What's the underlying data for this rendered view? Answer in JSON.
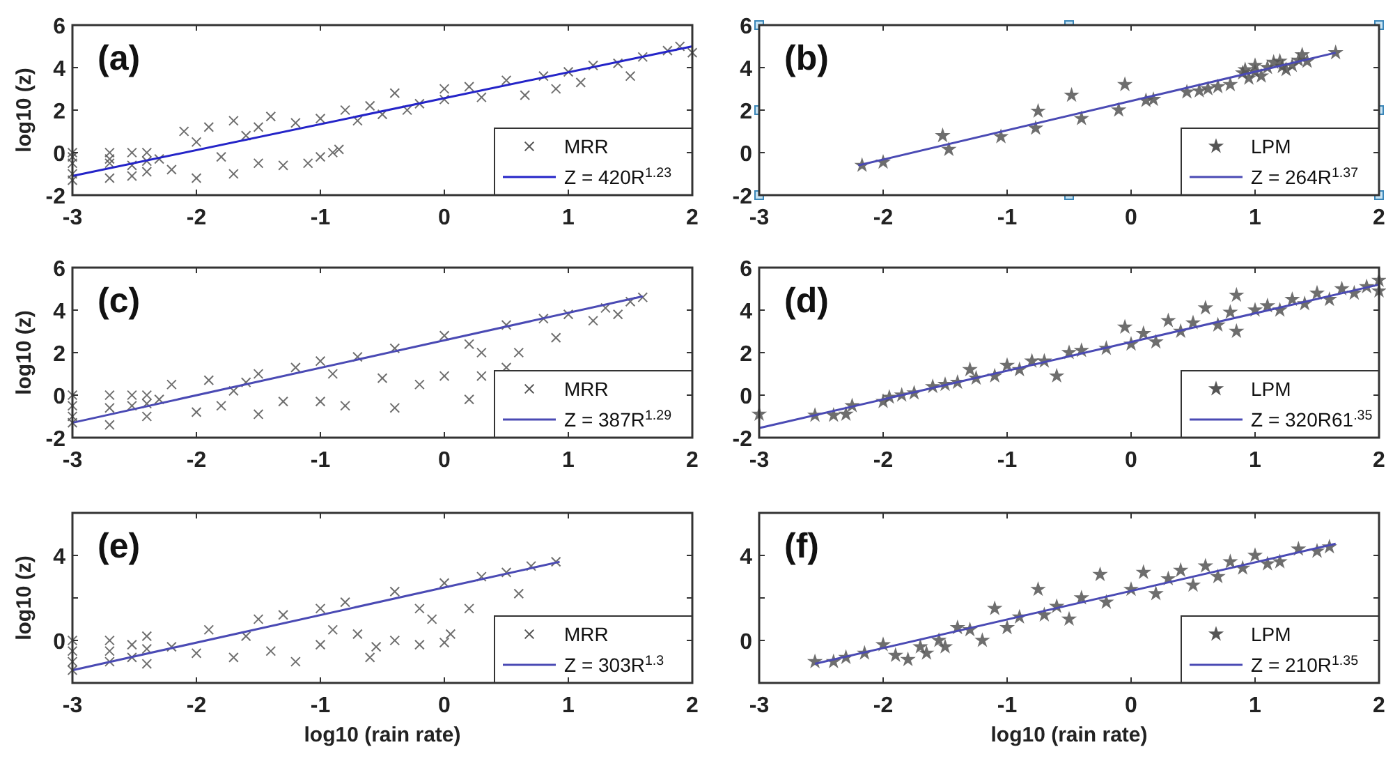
{
  "chart_data": [
    {
      "type": "scatter",
      "title": "(a)",
      "ylabel": "log10 (z)",
      "xlim": [
        -3,
        2
      ],
      "ylim": [
        -2,
        6
      ],
      "xticks": [
        -3,
        -2,
        -1,
        0,
        1,
        2
      ],
      "yticks": [
        -2,
        0,
        2,
        4,
        6
      ],
      "legend": "bottom right",
      "series": [
        {
          "name": "MRR",
          "type": "scatter",
          "marker": "cross",
          "color": "#555555",
          "x": [
            -3,
            -3,
            -3,
            -3,
            -3,
            -2.7,
            -2.7,
            -2.7,
            -2.7,
            -2.52,
            -2.52,
            -2.52,
            -2.4,
            -2.4,
            -2.4,
            -2.3,
            -2.2,
            -2.1,
            -2.0,
            -2.0,
            -1.9,
            -1.8,
            -1.7,
            -1.7,
            -1.6,
            -1.5,
            -1.4,
            -1.3,
            -1.2,
            -1.1,
            -1.0,
            -0.9,
            -0.85,
            -1.0,
            -0.8,
            -0.6,
            -0.4,
            -0.5,
            -0.2,
            0,
            0.2,
            0.3,
            0.5,
            0.65,
            0.8,
            0.9,
            1.0,
            1.1,
            1.2,
            1.4,
            1.5,
            1.6,
            1.8,
            1.9,
            2.0,
            0.0,
            -0.3,
            -1.5,
            -0.7
          ],
          "values": [
            0,
            -0.5,
            -1,
            -1.3,
            -0.2,
            0,
            -0.5,
            -1.2,
            -0.3,
            0,
            -0.6,
            -1.1,
            0,
            -0.4,
            -0.9,
            -0.3,
            -0.8,
            1.0,
            -1.2,
            0.5,
            1.2,
            -0.2,
            -1.0,
            1.5,
            0.8,
            -0.5,
            1.7,
            -0.6,
            1.4,
            -0.5,
            -0.2,
            0.0,
            0.15,
            1.6,
            2.0,
            2.2,
            2.8,
            1.8,
            2.3,
            3.0,
            3.1,
            2.6,
            3.4,
            2.7,
            3.6,
            3.0,
            3.8,
            3.3,
            4.1,
            4.2,
            3.6,
            4.5,
            4.8,
            5.0,
            4.7,
            2.5,
            2.0,
            1.2,
            1.5
          ]
        },
        {
          "name": "Z = 420R$^{1.23}$",
          "type": "line",
          "marker": "none",
          "color": "#2424c8",
          "x": [
            -3,
            2
          ],
          "values": [
            -1.1,
            5.0
          ]
        }
      ]
    },
    {
      "type": "scatter",
      "title": "(b)",
      "xlim": [
        -3,
        2
      ],
      "ylim": [
        -2,
        6
      ],
      "xticks": [
        -3,
        -2,
        -1,
        0,
        1,
        2
      ],
      "yticks": [
        -2,
        0,
        2,
        4,
        6
      ],
      "legend": "bottom right",
      "series": [
        {
          "name": "LPM",
          "type": "scatter",
          "marker": "star",
          "color": "#555555",
          "x": [
            -2.17,
            -2.0,
            -1.52,
            -1.47,
            -1.05,
            -0.77,
            -0.75,
            -0.48,
            -0.4,
            -0.1,
            -0.05,
            0.12,
            0.18,
            0.45,
            0.55,
            0.62,
            0.7,
            0.8,
            0.9,
            0.92,
            0.95,
            1.0,
            1.05,
            1.1,
            1.15,
            1.22,
            1.25,
            1.3,
            1.35,
            1.38,
            1.42,
            1.65,
            1.2,
            1.0
          ],
          "values": [
            -0.6,
            -0.45,
            0.8,
            0.15,
            0.75,
            1.15,
            1.95,
            2.7,
            1.6,
            2.0,
            3.2,
            2.45,
            2.5,
            2.85,
            2.9,
            3.0,
            3.1,
            3.2,
            3.75,
            3.9,
            3.5,
            4.1,
            3.6,
            4.0,
            4.25,
            4.05,
            3.9,
            4.1,
            4.35,
            4.6,
            4.3,
            4.7,
            4.3,
            3.8
          ]
        },
        {
          "name": "Z = 264R$^{1.37}$",
          "type": "line",
          "marker": "none",
          "color": "#4a4ab4",
          "x": [
            -2.2,
            1.65
          ],
          "values": [
            -0.6,
            4.7
          ]
        }
      ]
    },
    {
      "type": "scatter",
      "title": "(c)",
      "ylabel": "log10 (z)",
      "xlim": [
        -3,
        2
      ],
      "ylim": [
        -2,
        6
      ],
      "xticks": [
        -3,
        -2,
        -1,
        0,
        1,
        2
      ],
      "yticks": [
        -2,
        0,
        2,
        4,
        6
      ],
      "legend": "bottom right",
      "series": [
        {
          "name": "MRR",
          "type": "scatter",
          "marker": "cross",
          "color": "#555555",
          "x": [
            -3,
            -3,
            -3,
            -3,
            -2.7,
            -2.7,
            -2.7,
            -2.52,
            -2.52,
            -2.4,
            -2.4,
            -2.4,
            -2.3,
            -2.2,
            -2.0,
            -1.9,
            -1.8,
            -1.7,
            -1.5,
            -1.5,
            -1.3,
            -1.2,
            -1.0,
            -1.0,
            -0.8,
            -0.7,
            -0.5,
            -0.4,
            -0.4,
            -0.2,
            0,
            0,
            0.2,
            0.2,
            0.3,
            0.5,
            0.5,
            0.6,
            0.8,
            0.9,
            1.0,
            1.2,
            1.3,
            1.4,
            1.5,
            1.6,
            -1.6,
            -0.9,
            0.3
          ],
          "values": [
            0,
            -0.5,
            -1,
            -1.3,
            0,
            -0.6,
            -1.4,
            0,
            -0.5,
            0,
            -0.4,
            -1.0,
            -0.2,
            0.5,
            -0.8,
            0.7,
            -0.5,
            0.2,
            -0.9,
            1.0,
            -0.3,
            1.3,
            -0.3,
            1.6,
            -0.5,
            1.8,
            0.8,
            -0.6,
            2.2,
            0.5,
            0.9,
            2.8,
            -0.2,
            2.4,
            0.9,
            3.3,
            1.3,
            2.0,
            3.6,
            2.7,
            3.8,
            3.5,
            4.1,
            3.8,
            4.4,
            4.6,
            0.6,
            1.0,
            2.0
          ]
        },
        {
          "name": "Z = 387R$^{1.29}$",
          "type": "line",
          "marker": "none",
          "color": "#4a4ab4",
          "x": [
            -3,
            1.6
          ],
          "values": [
            -1.3,
            4.65
          ]
        }
      ]
    },
    {
      "type": "scatter",
      "title": "(d)",
      "xlim": [
        -3,
        2
      ],
      "ylim": [
        -2,
        6
      ],
      "xticks": [
        -3,
        -2,
        -1,
        0,
        1,
        2
      ],
      "yticks": [
        -2,
        0,
        2,
        4,
        6
      ],
      "legend": "bottom right",
      "series": [
        {
          "name": "LPM",
          "type": "scatter",
          "marker": "star",
          "color": "#555555",
          "x": [
            -3,
            -2.55,
            -2.4,
            -2.3,
            -2.25,
            -2.0,
            -1.95,
            -1.85,
            -1.75,
            -1.6,
            -1.5,
            -1.4,
            -1.3,
            -1.25,
            -1.1,
            -1.0,
            -0.9,
            -0.8,
            -0.7,
            -0.6,
            -0.5,
            -0.4,
            -0.2,
            -0.05,
            0,
            0.1,
            0.2,
            0.3,
            0.4,
            0.5,
            0.6,
            0.7,
            0.8,
            0.85,
            0.85,
            1.0,
            1.1,
            1.2,
            1.3,
            1.4,
            1.5,
            1.6,
            1.7,
            1.8,
            1.9,
            2.0,
            2.0
          ],
          "values": [
            -0.9,
            -0.95,
            -0.95,
            -0.9,
            -0.5,
            -0.3,
            -0.1,
            0,
            0.1,
            0.4,
            0.5,
            0.6,
            1.2,
            0.8,
            0.9,
            1.4,
            1.2,
            1.6,
            1.6,
            0.9,
            2.0,
            2.1,
            2.2,
            3.2,
            2.4,
            2.9,
            2.5,
            3.5,
            3.0,
            3.4,
            4.1,
            3.3,
            3.9,
            3.0,
            4.7,
            4.0,
            4.2,
            4.0,
            4.5,
            4.3,
            4.8,
            4.5,
            5.0,
            4.8,
            5.1,
            5.4,
            4.9
          ]
        },
        {
          "name": "Z = 320R61$^{.35}$",
          "type": "line",
          "marker": "none",
          "color": "#4a4ab4",
          "x": [
            -3,
            2
          ],
          "values": [
            -1.55,
            5.2
          ]
        }
      ]
    },
    {
      "type": "scatter",
      "title": "(e)",
      "xlabel": "log10 (rain rate)",
      "ylabel": "log10 (z)",
      "xlim": [
        -3,
        2
      ],
      "ylim": [
        -2,
        6
      ],
      "xticks": [
        -3,
        -2,
        -1,
        0,
        1,
        2
      ],
      "yticks": [
        {
          "value": -2,
          "label": null
        },
        0,
        {
          "value": 2,
          "label": null
        },
        4,
        {
          "value": 6,
          "label": null
        }
      ],
      "legend": "bottom right",
      "series": [
        {
          "name": "MRR",
          "type": "scatter",
          "marker": "cross",
          "color": "#555555",
          "x": [
            -3,
            -3,
            -3,
            -3,
            -2.7,
            -2.7,
            -2.7,
            -2.52,
            -2.52,
            -2.4,
            -2.4,
            -2.4,
            -2.2,
            -2.0,
            -1.9,
            -1.7,
            -1.5,
            -1.4,
            -1.3,
            -1.2,
            -1.0,
            -1.0,
            -0.8,
            -0.7,
            -0.6,
            -0.55,
            -0.4,
            -0.4,
            -0.2,
            -0.2,
            0,
            0.05,
            0,
            0.2,
            0.3,
            0.5,
            0.6,
            0.7,
            0.9,
            -1.6,
            -0.9,
            -0.1
          ],
          "values": [
            0,
            -0.5,
            -1,
            -1.4,
            0,
            -0.5,
            -1.0,
            -0.2,
            -0.8,
            0.2,
            -0.4,
            -1.1,
            -0.3,
            -0.6,
            0.5,
            -0.8,
            1.0,
            -0.5,
            1.2,
            -1.0,
            1.5,
            -0.2,
            1.8,
            0.3,
            -0.8,
            -0.3,
            2.3,
            0.0,
            -0.2,
            1.5,
            -0.1,
            0.3,
            2.7,
            1.5,
            3.0,
            3.2,
            2.2,
            3.5,
            3.7,
            0.2,
            0.5,
            1.0
          ]
        },
        {
          "name": "Z = 303R$^{1.3}$",
          "type": "line",
          "marker": "none",
          "color": "#4a4ab4",
          "x": [
            -3,
            0.93
          ],
          "values": [
            -1.4,
            3.7
          ]
        }
      ]
    },
    {
      "type": "scatter",
      "title": "(f)",
      "xlabel": "log10 (rain rate)",
      "xlim": [
        -3,
        2
      ],
      "ylim": [
        -2,
        6
      ],
      "xticks": [
        -3,
        -2,
        -1,
        0,
        1,
        2
      ],
      "yticks": [
        {
          "value": -2,
          "label": null
        },
        0,
        {
          "value": 2,
          "label": null
        },
        4,
        {
          "value": 6,
          "label": null
        }
      ],
      "legend": "bottom right",
      "series": [
        {
          "name": "LPM",
          "type": "scatter",
          "marker": "star",
          "color": "#555555",
          "x": [
            -2.55,
            -2.4,
            -2.3,
            -2.15,
            -2.0,
            -1.9,
            -1.8,
            -1.7,
            -1.65,
            -1.55,
            -1.5,
            -1.4,
            -1.3,
            -1.2,
            -1.1,
            -1.0,
            -0.9,
            -0.75,
            -0.7,
            -0.6,
            -0.5,
            -0.4,
            -0.25,
            -0.2,
            0,
            0.1,
            0.2,
            0.3,
            0.4,
            0.5,
            0.6,
            0.7,
            0.8,
            0.9,
            1.0,
            1.1,
            1.2,
            1.35,
            1.5,
            1.6
          ],
          "values": [
            -1.0,
            -1.0,
            -0.8,
            -0.6,
            -0.2,
            -0.7,
            -0.9,
            -0.3,
            -0.6,
            0,
            -0.3,
            0.6,
            0.5,
            0.0,
            1.5,
            0.6,
            1.1,
            2.4,
            1.2,
            1.6,
            1.0,
            2.0,
            3.1,
            1.8,
            2.4,
            3.2,
            2.2,
            2.9,
            3.3,
            2.6,
            3.5,
            3.0,
            3.7,
            3.4,
            4.0,
            3.6,
            3.7,
            4.3,
            4.2,
            4.4
          ]
        },
        {
          "name": "Z = 210R$^{1.35}$",
          "type": "line",
          "marker": "none",
          "color": "#4a4ab4",
          "x": [
            -2.55,
            1.65
          ],
          "values": [
            -1.1,
            4.55
          ]
        }
      ]
    }
  ]
}
